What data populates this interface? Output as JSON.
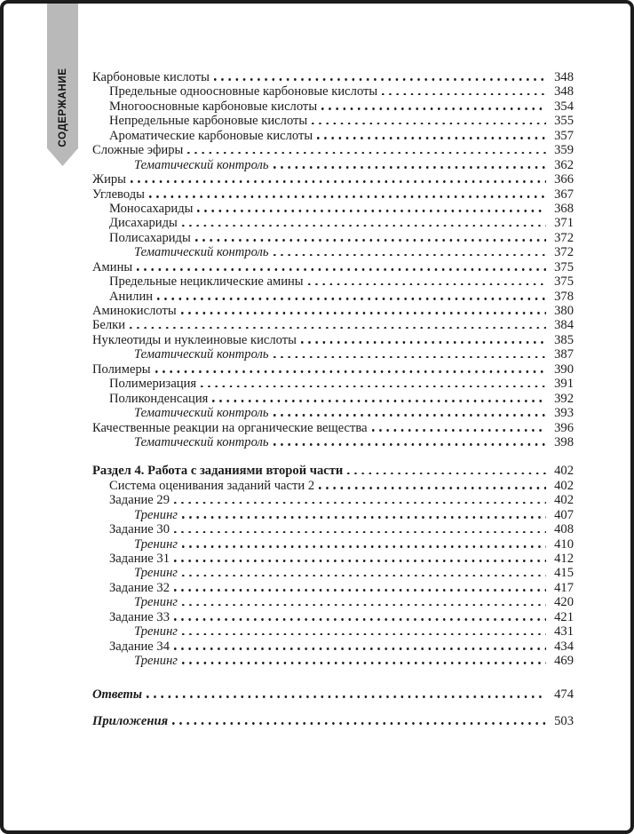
{
  "ribbon": {
    "label": "СОДЕРЖАНИЕ"
  },
  "colors": {
    "ribbon_gray": "#b9b9b9",
    "border_black": "#1c1c1c",
    "text": "#1b1b1b"
  },
  "toc": {
    "entries": [
      {
        "label": "Карбоновые кислоты",
        "page": "348",
        "level": 0,
        "style": "normal"
      },
      {
        "label": "Предельные одноосновные карбоновые кислоты",
        "page": "348",
        "level": 1,
        "style": "normal"
      },
      {
        "label": "Многоосновные карбоновые кислоты",
        "page": "354",
        "level": 1,
        "style": "normal"
      },
      {
        "label": "Непредельные карбоновые кислоты",
        "page": "355",
        "level": 1,
        "style": "normal"
      },
      {
        "label": "Ароматические карбоновые кислоты",
        "page": "357",
        "level": 1,
        "style": "normal"
      },
      {
        "label": "Сложные эфиры",
        "page": "359",
        "level": 0,
        "style": "normal"
      },
      {
        "label": "Тематический контроль",
        "page": "362",
        "level": 2,
        "style": "italic"
      },
      {
        "label": "Жиры",
        "page": "366",
        "level": 0,
        "style": "normal"
      },
      {
        "label": "Углеводы",
        "page": "367",
        "level": 0,
        "style": "normal"
      },
      {
        "label": "Моносахариды",
        "page": "368",
        "level": 1,
        "style": "normal"
      },
      {
        "label": "Дисахариды",
        "page": "371",
        "level": 1,
        "style": "normal"
      },
      {
        "label": "Полисахариды",
        "page": "372",
        "level": 1,
        "style": "normal"
      },
      {
        "label": "Тематический контроль",
        "page": "372",
        "level": 2,
        "style": "italic"
      },
      {
        "label": "Амины",
        "page": "375",
        "level": 0,
        "style": "normal"
      },
      {
        "label": "Предельные нециклические амины",
        "page": "375",
        "level": 1,
        "style": "normal"
      },
      {
        "label": "Анилин",
        "page": "378",
        "level": 1,
        "style": "normal"
      },
      {
        "label": "Аминокислоты",
        "page": "380",
        "level": 0,
        "style": "normal"
      },
      {
        "label": "Белки",
        "page": "384",
        "level": 0,
        "style": "normal"
      },
      {
        "label": "Нуклеотиды и нуклеиновые кислоты",
        "page": "385",
        "level": 0,
        "style": "normal"
      },
      {
        "label": "Тематический контроль",
        "page": "387",
        "level": 2,
        "style": "italic"
      },
      {
        "label": "Полимеры",
        "page": "390",
        "level": 0,
        "style": "normal"
      },
      {
        "label": "Полимеризация",
        "page": "391",
        "level": 1,
        "style": "normal"
      },
      {
        "label": "Поликонденсация",
        "page": "392",
        "level": 1,
        "style": "normal"
      },
      {
        "label": "Тематический контроль",
        "page": "393",
        "level": 2,
        "style": "italic"
      },
      {
        "label": "Качественные реакции на органические вещества",
        "page": "396",
        "level": 0,
        "style": "normal"
      },
      {
        "label": "Тематический контроль",
        "page": "398",
        "level": 2,
        "style": "italic"
      },
      {
        "label": "Раздел 4. Работа с заданиями второй части",
        "page": "402",
        "level": 0,
        "style": "bold",
        "gap_before": 16
      },
      {
        "label": "Система оценивания заданий части 2",
        "page": "402",
        "level": 1,
        "style": "normal"
      },
      {
        "label": "Задание 29",
        "page": "402",
        "level": 1,
        "style": "normal"
      },
      {
        "label": "Тренинг",
        "page": "407",
        "level": 2,
        "style": "italic"
      },
      {
        "label": "Задание 30",
        "page": "408",
        "level": 1,
        "style": "normal"
      },
      {
        "label": "Тренинг",
        "page": "410",
        "level": 2,
        "style": "italic"
      },
      {
        "label": "Задание 31",
        "page": "412",
        "level": 1,
        "style": "normal"
      },
      {
        "label": "Тренинг",
        "page": "415",
        "level": 2,
        "style": "italic"
      },
      {
        "label": "Задание 32",
        "page": "417",
        "level": 1,
        "style": "normal"
      },
      {
        "label": "Тренинг",
        "page": "420",
        "level": 2,
        "style": "italic"
      },
      {
        "label": "Задание 33",
        "page": "421",
        "level": 1,
        "style": "normal"
      },
      {
        "label": "Тренинг",
        "page": "431",
        "level": 2,
        "style": "italic"
      },
      {
        "label": "Задание 34",
        "page": "434",
        "level": 1,
        "style": "normal"
      },
      {
        "label": "Тренинг",
        "page": "469",
        "level": 2,
        "style": "italic"
      },
      {
        "label": "Ответы",
        "page": "474",
        "level": 0,
        "style": "bold-italic",
        "gap_before": 21
      },
      {
        "label": "Приложения",
        "page": "503",
        "level": 0,
        "style": "bold-italic",
        "gap_before": 14
      }
    ]
  }
}
